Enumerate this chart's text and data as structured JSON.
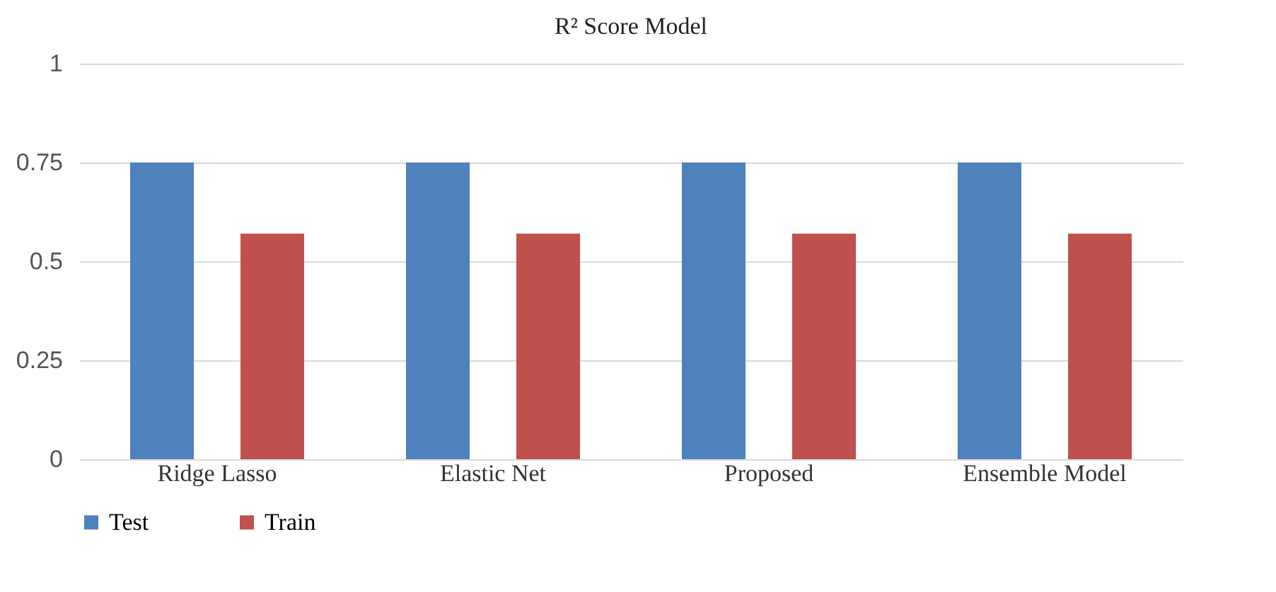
{
  "chart_data": {
    "type": "bar",
    "title": "R² Score Model",
    "categories": [
      "Ridge Lasso",
      "Elastic Net",
      "Proposed",
      "Ensemble Model"
    ],
    "series": [
      {
        "name": "Test",
        "color": "#4f81bd",
        "values": [
          0.75,
          0.75,
          0.75,
          0.75
        ]
      },
      {
        "name": "Train",
        "color": "#c0504d",
        "values": [
          0.57,
          0.57,
          0.57,
          0.57
        ]
      }
    ],
    "ylim": [
      0,
      1
    ],
    "yticks": [
      0,
      0.25,
      0.5,
      0.75,
      1
    ],
    "grid": "y",
    "legend": "bottom"
  }
}
